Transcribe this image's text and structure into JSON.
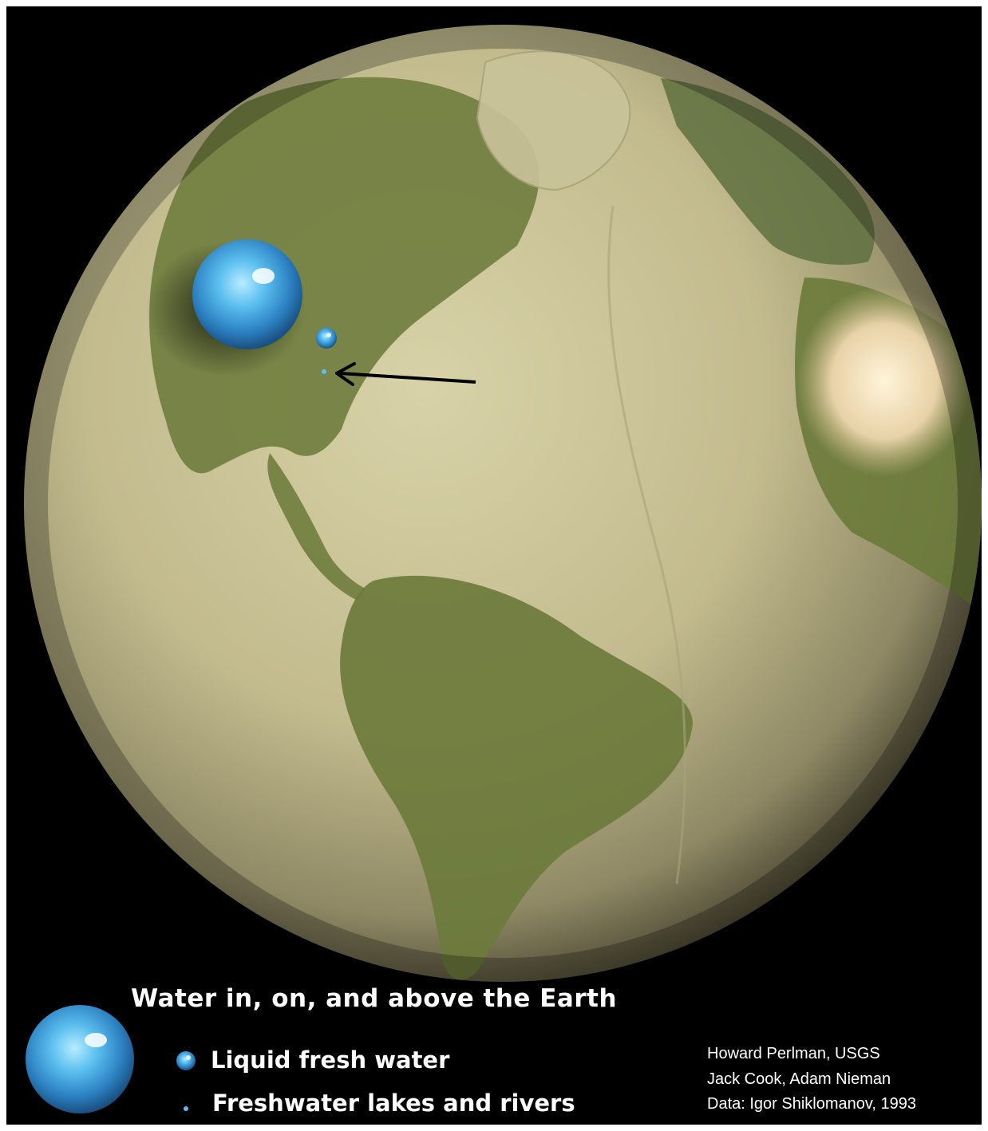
{
  "legend": {
    "title": "Water in, on, and above the Earth",
    "items": [
      {
        "label": "Liquid fresh water"
      },
      {
        "label": "Freshwater lakes and rivers"
      }
    ]
  },
  "credits": [
    "Howard Perlman, USGS",
    "Jack Cook, Adam Nieman",
    "Data: Igor Shiklomanov, 1993"
  ],
  "colors": {
    "background": "#000000",
    "ocean_floor": "#c9c39a",
    "land_green": "#6f7d3e",
    "water_blue": "#3fa6e0",
    "text": "#ffffff"
  }
}
